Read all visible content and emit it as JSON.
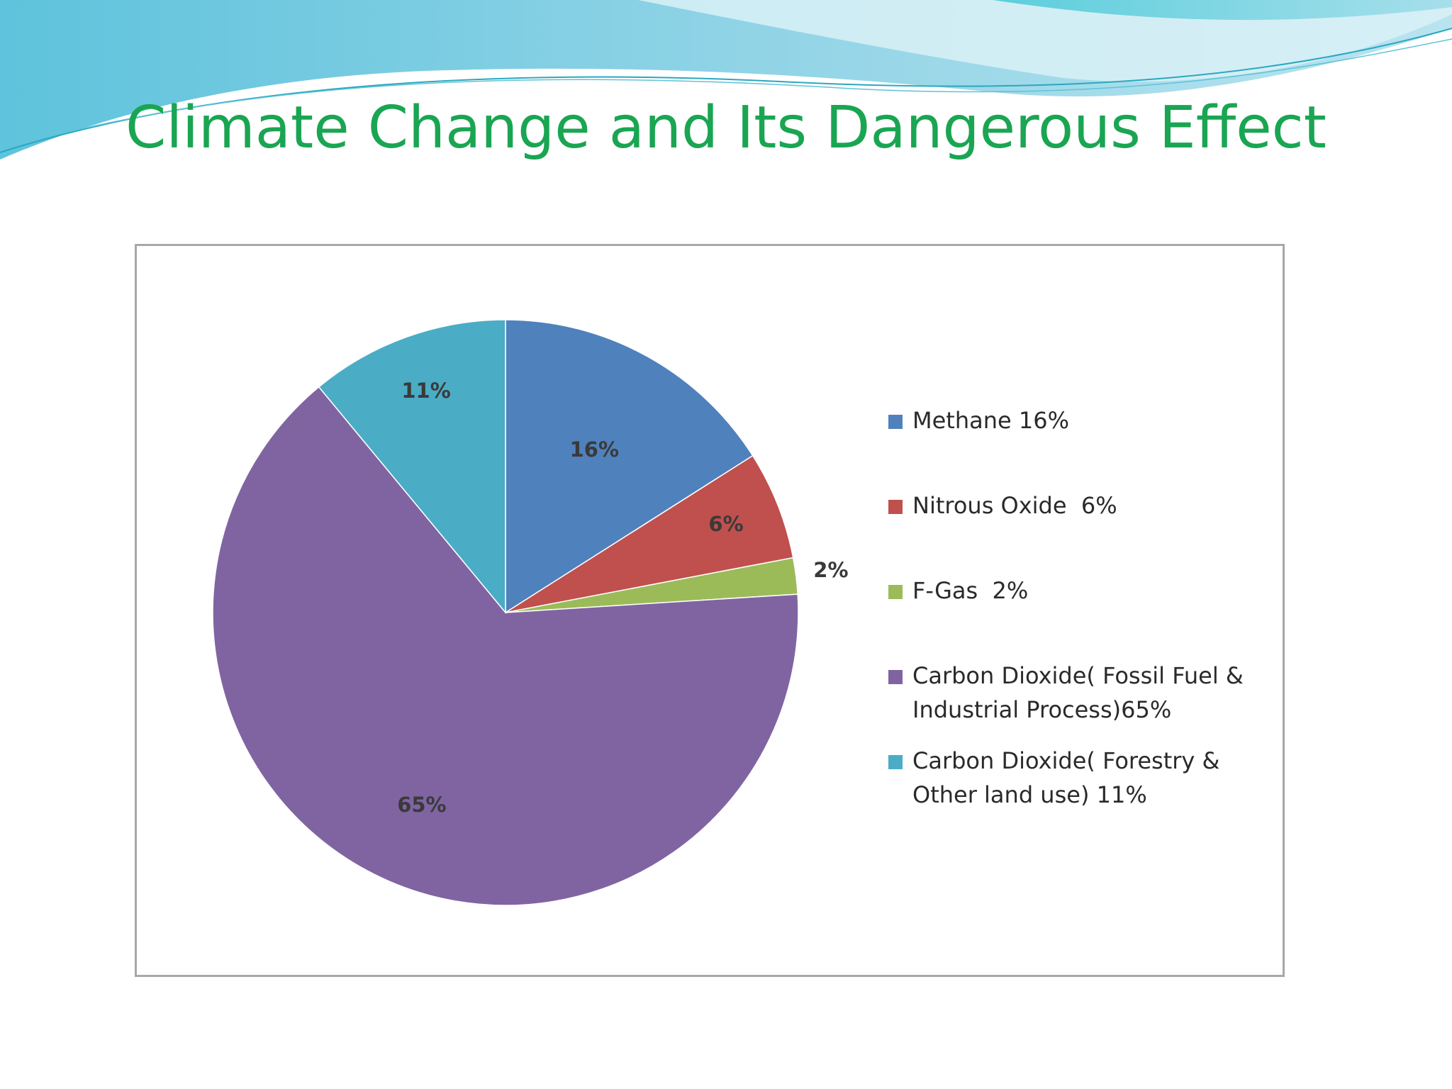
{
  "slide": {
    "title": "Climate Change and Its Dangerous Effect"
  },
  "chart_data": {
    "type": "pie",
    "title": "",
    "start_angle_deg": 0,
    "direction": "clockwise",
    "legend_position": "right",
    "slices": [
      {
        "name": "Methane 16%",
        "legend_lines": [
          "Methane 16%"
        ],
        "value": 16,
        "label": "16%",
        "color": "#4f81bd"
      },
      {
        "name": "Nitrous Oxide 6%",
        "legend_lines": [
          "Nitrous Oxide  6%"
        ],
        "value": 6,
        "label": "6%",
        "color": "#c0504d"
      },
      {
        "name": "F-Gas 2%",
        "legend_lines": [
          "F-Gas  2%"
        ],
        "value": 2,
        "label": "2%",
        "color": "#9bbb59"
      },
      {
        "name": "Carbon Dioxide( Fossil Fuel & Industrial Process)65%",
        "legend_lines": [
          "Carbon Dioxide( Fossil Fuel &",
          "Industrial Process)65%"
        ],
        "value": 65,
        "label": "65%",
        "color": "#8064a2"
      },
      {
        "name": "Carbon Dioxide( Forestry & Other land use) 11%",
        "legend_lines": [
          "Carbon Dioxide( Forestry &",
          "Other land use) 11%"
        ],
        "value": 11,
        "label": "11%",
        "color": "#4bacc6"
      }
    ]
  }
}
